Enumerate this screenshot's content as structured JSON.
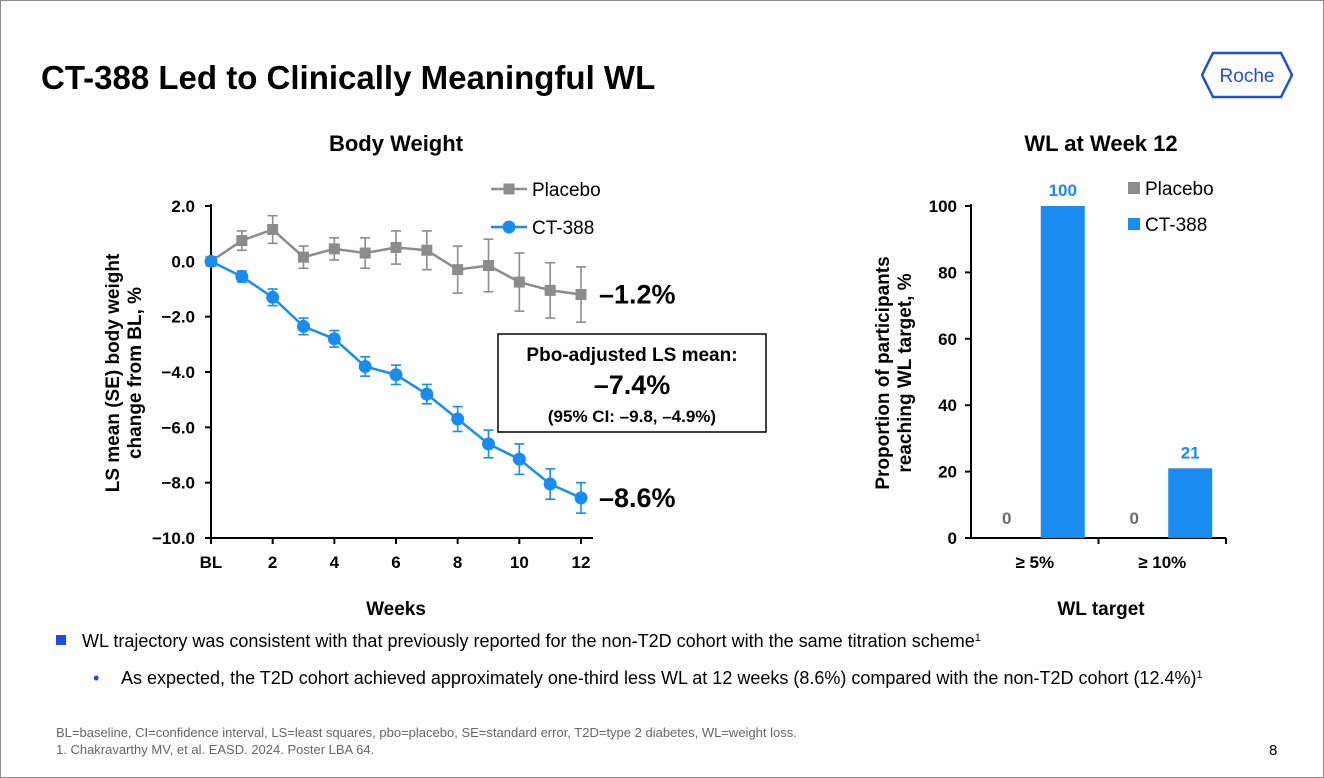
{
  "slide": {
    "title": "CT-388 Led to Clinically Meaningful WL",
    "logo_text": "Roche",
    "page_number": "8"
  },
  "bullets": {
    "main": "WL trajectory was consistent with that previously reported for the non-T2D cohort with the same titration scheme",
    "main_ref": "1",
    "sub": "As expected, the T2D cohort achieved approximately one-third less WL at 12 weeks (8.6%) compared with the non-T2D cohort (12.4%)",
    "sub_ref": "1"
  },
  "footnotes": [
    "BL=baseline, CI=confidence interval, LS=least squares, pbo=placebo, SE=standard error, T2D=type 2 diabetes, WL=weight loss.",
    "1. Chakravarthy MV, et al. EASD. 2024. Poster LBA 64."
  ],
  "colors": {
    "placebo": "#8c8c8c",
    "ct388": "#1a8cf0",
    "bullet": "#1f4fd6"
  },
  "chart_data": [
    {
      "type": "line",
      "title": "Body Weight",
      "xlabel": "Weeks",
      "ylabel": "LS mean (SE) body weight change from BL, %",
      "ylabel_lines": [
        "LS mean (SE) body weight",
        "change from BL, %"
      ],
      "x": [
        0,
        1,
        2,
        3,
        4,
        5,
        6,
        7,
        8,
        9,
        10,
        11,
        12
      ],
      "x_ticks": [
        {
          "v": 0,
          "label": "BL"
        },
        {
          "v": 2,
          "label": "2"
        },
        {
          "v": 4,
          "label": "4"
        },
        {
          "v": 6,
          "label": "6"
        },
        {
          "v": 8,
          "label": "8"
        },
        {
          "v": 10,
          "label": "10"
        },
        {
          "v": 12,
          "label": "12"
        }
      ],
      "y_ticks": [
        {
          "v": 2,
          "label": "2.0"
        },
        {
          "v": 0,
          "label": "0.0"
        },
        {
          "v": -2,
          "label": "−2.0"
        },
        {
          "v": -4,
          "label": "−4.0"
        },
        {
          "v": -6,
          "label": "−6.0"
        },
        {
          "v": -8,
          "label": "−8.0"
        },
        {
          "v": -10,
          "label": "−10.0"
        }
      ],
      "xlim": [
        0,
        12
      ],
      "ylim": [
        -10,
        2
      ],
      "series": [
        {
          "name": "Placebo",
          "marker": "square",
          "color": "#8c8c8c",
          "values": [
            0,
            0.75,
            1.15,
            0.15,
            0.45,
            0.3,
            0.5,
            0.4,
            -0.3,
            -0.15,
            -0.75,
            -1.05,
            -1.2
          ],
          "se": [
            0,
            0.35,
            0.5,
            0.4,
            0.4,
            0.55,
            0.6,
            0.7,
            0.85,
            0.95,
            1.05,
            1.0,
            1.0
          ],
          "end_label": "–1.2%"
        },
        {
          "name": "CT-388",
          "marker": "circle",
          "color": "#1a8cf0",
          "values": [
            0,
            -0.55,
            -1.3,
            -2.35,
            -2.8,
            -3.8,
            -4.1,
            -4.8,
            -5.7,
            -6.6,
            -7.15,
            -8.05,
            -8.55
          ],
          "se": [
            0,
            0.2,
            0.3,
            0.3,
            0.3,
            0.35,
            0.35,
            0.35,
            0.45,
            0.5,
            0.55,
            0.55,
            0.55
          ],
          "end_label": "–8.6%"
        }
      ],
      "legend": [
        "Placebo",
        "CT-388"
      ],
      "legend_position": "top-right",
      "annotation": {
        "title": "Pbo-adjusted LS mean:",
        "value": "–7.4%",
        "ci": "(95% CI: –9.8, –4.9%)"
      }
    },
    {
      "type": "bar",
      "title": "WL at Week 12",
      "xlabel": "WL target",
      "ylabel": "Proportion of participants reaching WL target, %",
      "ylabel_lines": [
        "Proportion of participants",
        "reaching WL target, %"
      ],
      "categories": [
        "≥ 5%",
        "≥ 10%"
      ],
      "ylim": [
        0,
        100
      ],
      "y_ticks": [
        0,
        20,
        40,
        60,
        80,
        100
      ],
      "series": [
        {
          "name": "Placebo",
          "color": "#8c8c8c",
          "values": [
            0,
            0
          ],
          "labels": [
            "0",
            "0"
          ]
        },
        {
          "name": "CT-388",
          "color": "#1a8cf0",
          "values": [
            100,
            21
          ],
          "labels": [
            "100",
            "21"
          ]
        }
      ],
      "legend": [
        "Placebo",
        "CT-388"
      ],
      "legend_position": "top-right"
    }
  ]
}
